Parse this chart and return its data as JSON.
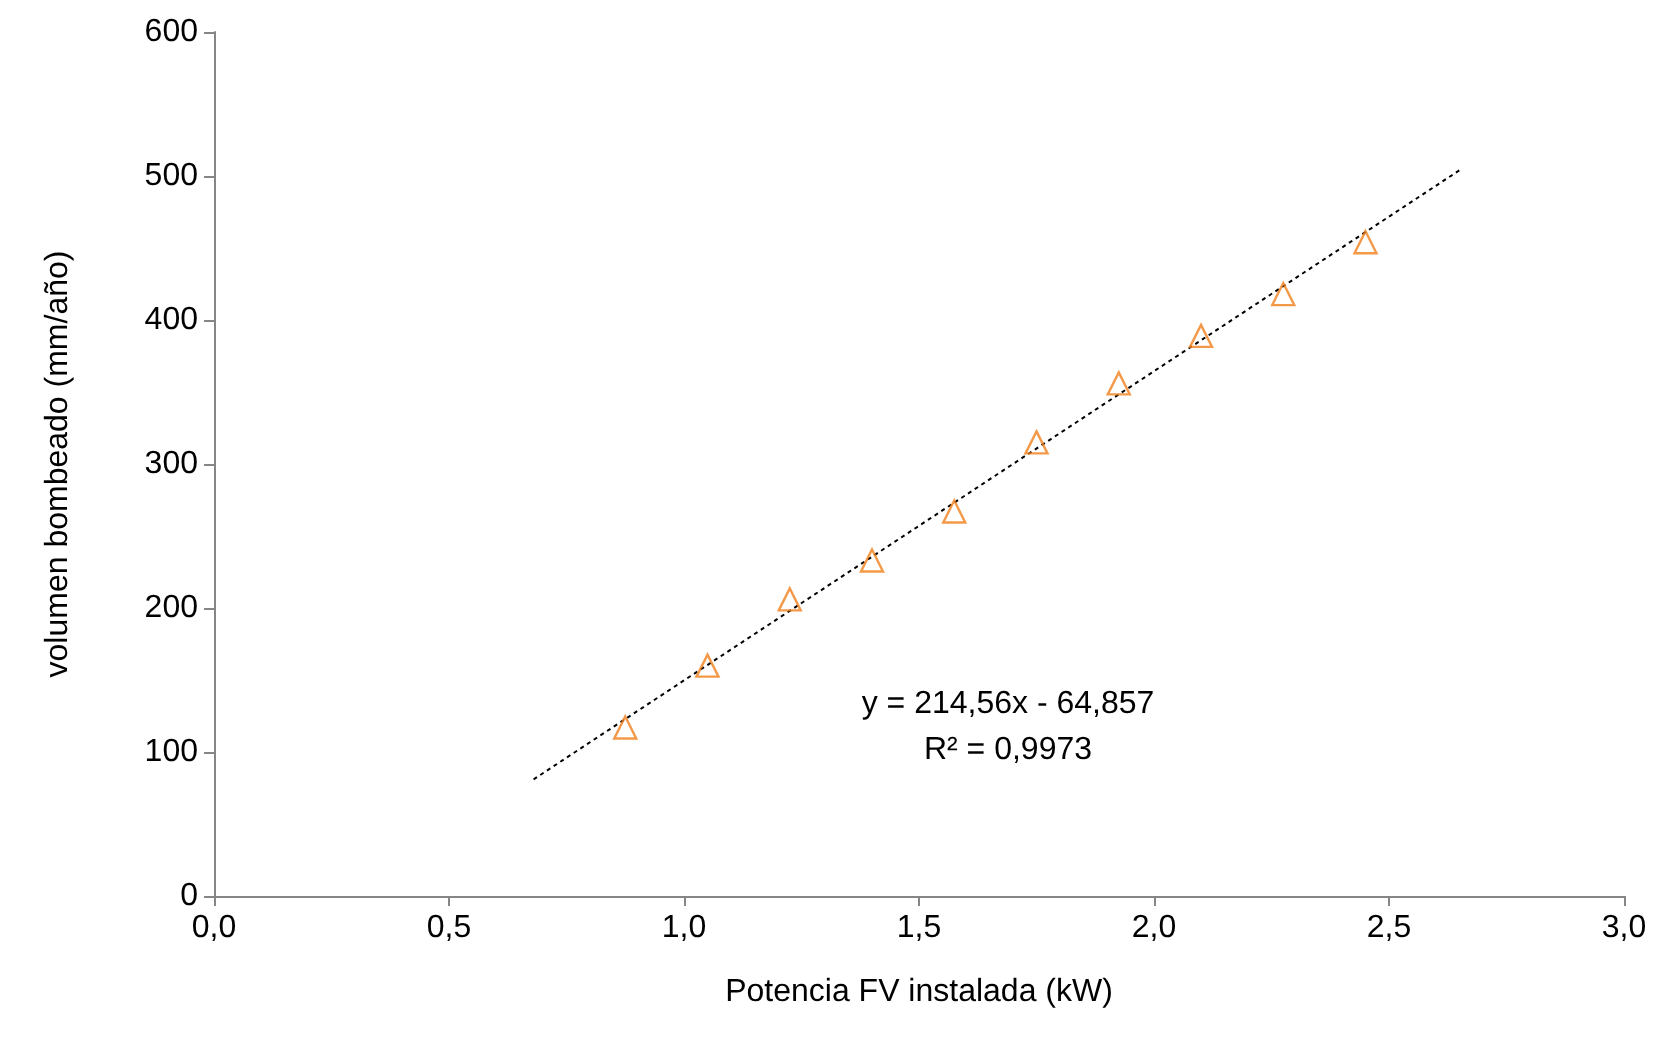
{
  "chart_data": {
    "type": "scatter",
    "xlabel": "Potencia FV instalada (kW)",
    "ylabel": "volumen bombeado (mm/año)",
    "xlim": [
      0,
      3
    ],
    "xticks": [
      {
        "value": 0,
        "label": "0,0"
      },
      {
        "value": 0.5,
        "label": "0,5"
      },
      {
        "value": 1,
        "label": "1,0"
      },
      {
        "value": 1.5,
        "label": "1,5"
      },
      {
        "value": 2,
        "label": "2,0"
      },
      {
        "value": 2.5,
        "label": "2,5"
      },
      {
        "value": 3,
        "label": "3,0"
      }
    ],
    "ylim": [
      0,
      600
    ],
    "yticks": [
      0,
      100,
      200,
      300,
      400,
      500,
      600
    ],
    "grid": false,
    "x": [
      0.875,
      1.05,
      1.225,
      1.4,
      1.575,
      1.75,
      1.925,
      2.1,
      2.275,
      2.45
    ],
    "series": [
      {
        "color": "#f07f1a",
        "marker": "triangle",
        "values": [
          117,
          160,
          206,
          233,
          267,
          315,
          356,
          389,
          418,
          454
        ]
      },
      {
        "type": "line",
        "color": "#000000",
        "marker": "none",
        "line_style": "dotted",
        "x": [
          0.68,
          2.65
        ],
        "values": [
          81,
          504
        ]
      }
    ],
    "annotations": [
      "y = 214,56x - 64,857",
      "R² = 0,9973"
    ]
  }
}
